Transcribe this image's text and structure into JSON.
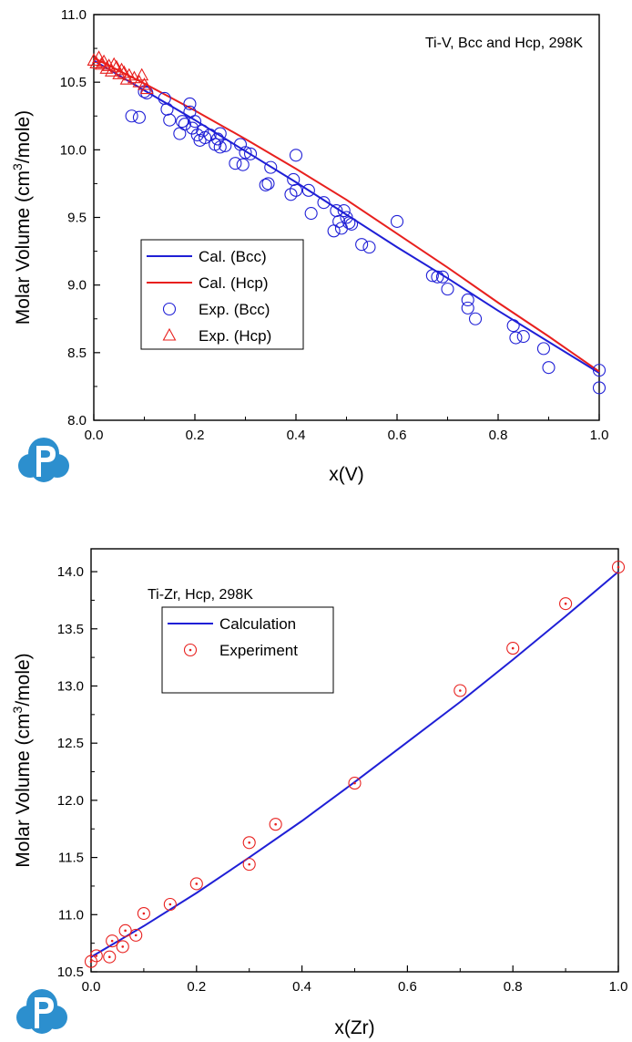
{
  "chart_data": [
    {
      "type": "line",
      "annotation": "Ti-V, Bcc and Hcp, 298K",
      "xlabel": "x(V)",
      "ylabel_pre": "Molar Volume (cm",
      "ylabel_sup": "3",
      "ylabel_post": "/mole)",
      "xlim": [
        0.0,
        1.0
      ],
      "ylim": [
        8.0,
        11.0
      ],
      "xticks": [
        "0.0",
        "0.2",
        "0.4",
        "0.6",
        "0.8",
        "1.0"
      ],
      "yticks": [
        "8.0",
        "8.5",
        "9.0",
        "9.5",
        "10.0",
        "10.5",
        "11.0"
      ],
      "grid": false,
      "legend_position": "center-left",
      "series": [
        {
          "name": "Cal. (Bcc)",
          "kind": "line",
          "color": "#1f1fd6",
          "x": [
            0.0,
            0.1,
            0.2,
            0.3,
            0.4,
            0.5,
            0.6,
            0.7,
            0.8,
            0.9,
            1.0
          ],
          "y": [
            10.66,
            10.44,
            10.22,
            9.99,
            9.76,
            9.52,
            9.28,
            9.05,
            8.81,
            8.58,
            8.35
          ]
        },
        {
          "name": "Cal. (Hcp)",
          "kind": "line",
          "color": "#e8201e",
          "x": [
            0.0,
            0.1,
            0.2,
            0.3,
            0.4,
            0.5,
            0.6,
            0.7,
            0.8,
            0.9,
            1.0
          ],
          "y": [
            10.68,
            10.49,
            10.29,
            10.08,
            9.86,
            9.63,
            9.38,
            9.13,
            8.87,
            8.62,
            8.36
          ]
        },
        {
          "name": "Exp. (Bcc)",
          "kind": "scatter",
          "marker": "circle",
          "color": "#1f1fd6",
          "x": [
            0.075,
            0.09,
            0.1,
            0.105,
            0.14,
            0.145,
            0.15,
            0.17,
            0.175,
            0.18,
            0.19,
            0.19,
            0.195,
            0.2,
            0.205,
            0.21,
            0.215,
            0.22,
            0.23,
            0.24,
            0.245,
            0.25,
            0.25,
            0.26,
            0.28,
            0.29,
            0.295,
            0.3,
            0.31,
            0.34,
            0.345,
            0.35,
            0.39,
            0.395,
            0.4,
            0.4,
            0.425,
            0.43,
            0.455,
            0.475,
            0.48,
            0.485,
            0.49,
            0.495,
            0.5,
            0.505,
            0.51,
            0.53,
            0.545,
            0.6,
            0.67,
            0.68,
            0.69,
            0.7,
            0.74,
            0.74,
            0.755,
            0.83,
            0.835,
            0.85,
            0.89,
            0.9,
            1.0,
            1.0
          ],
          "y": [
            10.25,
            10.24,
            10.43,
            10.42,
            10.38,
            10.3,
            10.22,
            10.12,
            10.21,
            10.19,
            10.28,
            10.34,
            10.16,
            10.21,
            10.11,
            10.07,
            10.14,
            10.09,
            10.11,
            10.04,
            10.08,
            10.02,
            10.12,
            10.03,
            9.9,
            10.04,
            9.89,
            9.98,
            9.97,
            9.74,
            9.75,
            9.87,
            9.67,
            9.78,
            9.7,
            9.96,
            9.7,
            9.53,
            9.61,
            9.4,
            9.55,
            9.47,
            9.42,
            9.55,
            9.5,
            9.46,
            9.45,
            9.3,
            9.28,
            9.47,
            9.07,
            9.06,
            9.06,
            8.97,
            8.89,
            8.83,
            8.75,
            8.7,
            8.61,
            8.62,
            8.53,
            8.39,
            8.37,
            8.24
          ]
        },
        {
          "name": "Exp. (Hcp)",
          "kind": "scatter",
          "marker": "triangle",
          "color": "#e8201e",
          "x": [
            0.0,
            0.005,
            0.01,
            0.015,
            0.02,
            0.025,
            0.03,
            0.035,
            0.04,
            0.045,
            0.05,
            0.055,
            0.06,
            0.065,
            0.07,
            0.08,
            0.09,
            0.095,
            0.1,
            0.105
          ],
          "y": [
            10.66,
            10.64,
            10.68,
            10.63,
            10.65,
            10.6,
            10.62,
            10.58,
            10.63,
            10.61,
            10.56,
            10.59,
            10.57,
            10.52,
            10.55,
            10.53,
            10.5,
            10.55,
            10.48,
            10.45
          ]
        }
      ]
    },
    {
      "type": "line",
      "annotation": "Ti-Zr, Hcp, 298K",
      "xlabel": "x(Zr)",
      "ylabel_pre": "Molar Volume (cm",
      "ylabel_sup": "3",
      "ylabel_post": "/mole)",
      "xlim": [
        0.0,
        1.0
      ],
      "ylim": [
        10.5,
        14.2
      ],
      "xticks": [
        "0.0",
        "0.2",
        "0.4",
        "0.6",
        "0.8",
        "1.0"
      ],
      "yticks": [
        "10.5",
        "11.0",
        "11.5",
        "12.0",
        "12.5",
        "13.0",
        "13.5",
        "14.0"
      ],
      "grid": false,
      "legend_position": "top-left",
      "series": [
        {
          "name": "Calculation",
          "kind": "line",
          "color": "#1f1fd6",
          "x": [
            0.0,
            0.1,
            0.2,
            0.3,
            0.4,
            0.5,
            0.6,
            0.7,
            0.8,
            0.9,
            1.0
          ],
          "y": [
            10.63,
            10.9,
            11.19,
            11.5,
            11.82,
            12.16,
            12.51,
            12.86,
            13.23,
            13.61,
            14.0
          ]
        },
        {
          "name": "Experiment",
          "kind": "scatter",
          "marker": "circle",
          "color": "#e8201e",
          "x": [
            0.0,
            0.01,
            0.035,
            0.04,
            0.06,
            0.065,
            0.085,
            0.1,
            0.15,
            0.2,
            0.3,
            0.3,
            0.35,
            0.5,
            0.7,
            0.8,
            0.9,
            1.0
          ],
          "y": [
            10.59,
            10.64,
            10.63,
            10.77,
            10.72,
            10.86,
            10.82,
            11.01,
            11.09,
            11.27,
            11.44,
            11.63,
            11.79,
            12.15,
            12.96,
            13.33,
            13.72,
            14.04
          ]
        }
      ]
    }
  ]
}
